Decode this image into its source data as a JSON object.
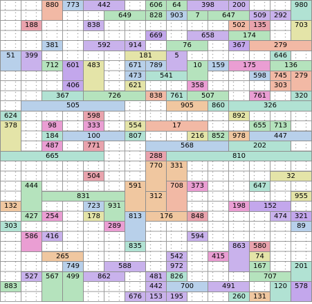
{
  "palette": {
    "pink": "#e9a3ad",
    "lav": "#c9b2ec",
    "green": "#b5e3bd",
    "salmon": "#f2b9a5",
    "yellow": "#e4e4a8",
    "blue": "#b8d0ea",
    "mint": "#b1e2d3",
    "violet": "#c3a7ec",
    "peach": "#f0c7a0",
    "magenta": "#ea9ed3"
  },
  "grid": {
    "cols": 15,
    "rows": 30
  },
  "blocks": [
    {
      "n": "880",
      "c": 2,
      "r": 0,
      "w": 1,
      "h": 2,
      "col": "salmon"
    },
    {
      "n": "773",
      "c": 3,
      "r": 0,
      "w": 1,
      "h": 1,
      "col": "blue"
    },
    {
      "n": "442",
      "c": 4,
      "r": 0,
      "w": 2,
      "h": 1,
      "col": "lav"
    },
    {
      "n": "606",
      "c": 7,
      "r": 0,
      "w": 1,
      "h": 1,
      "col": "green"
    },
    {
      "n": "64",
      "c": 8,
      "r": 0,
      "w": 1,
      "h": 1,
      "col": "green"
    },
    {
      "n": "398",
      "c": 9,
      "r": 0,
      "w": 2,
      "h": 1,
      "col": "lav"
    },
    {
      "n": "200",
      "c": 11,
      "r": 0,
      "w": 1,
      "h": 1,
      "col": "lav"
    },
    {
      "n": "980",
      "c": 14,
      "r": 0,
      "w": 1,
      "h": 2,
      "col": "mint"
    },
    {
      "n": "649",
      "c": 5,
      "r": 1,
      "w": 2,
      "h": 1,
      "col": "green"
    },
    {
      "n": "828",
      "c": 7,
      "r": 1,
      "w": 1,
      "h": 1,
      "col": "green"
    },
    {
      "n": "903",
      "c": 8,
      "r": 1,
      "w": 1,
      "h": 1,
      "col": "blue"
    },
    {
      "n": "7",
      "c": 9,
      "r": 1,
      "w": 1,
      "h": 1,
      "col": "green"
    },
    {
      "n": "647",
      "c": 10,
      "r": 1,
      "w": 2,
      "h": 1,
      "col": "green"
    },
    {
      "n": "509",
      "c": 12,
      "r": 1,
      "w": 1,
      "h": 1,
      "col": "lav"
    },
    {
      "n": "292",
      "c": 13,
      "r": 1,
      "w": 1,
      "h": 1,
      "col": "lav"
    },
    {
      "n": "188",
      "c": 1,
      "r": 2,
      "w": 1,
      "h": 1,
      "col": "pink"
    },
    {
      "n": "838",
      "c": 4,
      "r": 2,
      "w": 1,
      "h": 1,
      "col": "lav"
    },
    {
      "n": "502",
      "c": 11,
      "r": 2,
      "w": 1,
      "h": 1,
      "col": "salmon"
    },
    {
      "n": "135",
      "c": 12,
      "r": 2,
      "w": 1,
      "h": 1,
      "col": "pink"
    },
    {
      "n": "703",
      "c": 14,
      "r": 2,
      "w": 1,
      "h": 2,
      "col": "yellow"
    },
    {
      "n": "669",
      "c": 7,
      "r": 3,
      "w": 1,
      "h": 1,
      "col": "violet"
    },
    {
      "n": "658",
      "c": 9,
      "r": 3,
      "w": 2,
      "h": 1,
      "col": "lav"
    },
    {
      "n": "174",
      "c": 11,
      "r": 3,
      "w": 2,
      "h": 1,
      "col": "green"
    },
    {
      "n": "381",
      "c": 2,
      "r": 4,
      "w": 1,
      "h": 1,
      "col": "blue"
    },
    {
      "n": "592",
      "c": 4,
      "r": 4,
      "w": 2,
      "h": 1,
      "col": "lav"
    },
    {
      "n": "914",
      "c": 6,
      "r": 4,
      "w": 1,
      "h": 1,
      "col": "lav"
    },
    {
      "n": "76",
      "c": 8,
      "r": 4,
      "w": 2,
      "h": 1,
      "col": "green"
    },
    {
      "n": "367",
      "c": 11,
      "r": 4,
      "w": 1,
      "h": 1,
      "col": "violet"
    },
    {
      "n": "279",
      "c": 12,
      "r": 4,
      "w": 3,
      "h": 1,
      "col": "salmon"
    },
    {
      "n": "51",
      "c": 0,
      "r": 5,
      "w": 1,
      "h": 2,
      "col": "blue"
    },
    {
      "n": "399",
      "c": 1,
      "r": 5,
      "w": 1,
      "h": 2,
      "col": "lav"
    },
    {
      "n": "181",
      "c": 6,
      "r": 5,
      "w": 2,
      "h": 1,
      "col": "yellow"
    },
    {
      "n": "5",
      "c": 8,
      "r": 5,
      "w": 1,
      "h": 2,
      "col": "lav"
    },
    {
      "n": "646",
      "c": 13,
      "r": 5,
      "w": 1,
      "h": 1,
      "col": "mint"
    },
    {
      "n": "712",
      "c": 2,
      "r": 6,
      "w": 1,
      "h": 1,
      "col": "green"
    },
    {
      "n": "601",
      "c": 3,
      "r": 6,
      "w": 1,
      "h": 2,
      "col": "violet"
    },
    {
      "n": "483",
      "c": 4,
      "r": 6,
      "w": 1,
      "h": 3,
      "col": "yellow"
    },
    {
      "n": "671",
      "c": 6,
      "r": 6,
      "w": 1,
      "h": 1,
      "col": "blue"
    },
    {
      "n": "789",
      "c": 7,
      "r": 6,
      "w": 1,
      "h": 1,
      "col": "blue"
    },
    {
      "n": "10",
      "c": 9,
      "r": 6,
      "w": 1,
      "h": 2,
      "col": "green"
    },
    {
      "n": "159",
      "c": 10,
      "r": 6,
      "w": 1,
      "h": 1,
      "col": "blue"
    },
    {
      "n": "175",
      "c": 11,
      "r": 6,
      "w": 2,
      "h": 1,
      "col": "magenta"
    },
    {
      "n": "136",
      "c": 13,
      "r": 6,
      "w": 2,
      "h": 1,
      "col": "green"
    },
    {
      "n": "473",
      "c": 6,
      "r": 7,
      "w": 1,
      "h": 1,
      "col": "blue"
    },
    {
      "n": "541",
      "c": 7,
      "r": 7,
      "w": 2,
      "h": 1,
      "col": "mint"
    },
    {
      "n": "598",
      "c": 12,
      "r": 7,
      "w": 1,
      "h": 1,
      "col": "blue"
    },
    {
      "n": "745",
      "c": 13,
      "r": 7,
      "w": 1,
      "h": 1,
      "col": "salmon"
    },
    {
      "n": "279",
      "c": 14,
      "r": 7,
      "w": 1,
      "h": 2,
      "col": "salmon"
    },
    {
      "n": "406",
      "c": 3,
      "r": 8,
      "w": 1,
      "h": 1,
      "col": "violet"
    },
    {
      "n": "621",
      "c": 6,
      "r": 8,
      "w": 1,
      "h": 1,
      "col": "yellow"
    },
    {
      "n": "358",
      "c": 9,
      "r": 8,
      "w": 1,
      "h": 1,
      "col": "magenta"
    },
    {
      "n": "303",
      "c": 13,
      "r": 8,
      "w": 1,
      "h": 1,
      "col": "salmon"
    },
    {
      "n": "367",
      "c": 2,
      "r": 9,
      "w": 2,
      "h": 1,
      "col": "mint"
    },
    {
      "n": "726",
      "c": 4,
      "r": 9,
      "w": 3,
      "h": 1,
      "col": "green"
    },
    {
      "n": "838",
      "c": 7,
      "r": 9,
      "w": 1,
      "h": 1,
      "col": "salmon"
    },
    {
      "n": "761",
      "c": 8,
      "r": 9,
      "w": 1,
      "h": 1,
      "col": "mint"
    },
    {
      "n": "507",
      "c": 9,
      "r": 9,
      "w": 2,
      "h": 1,
      "col": "green"
    },
    {
      "n": "761",
      "c": 12,
      "r": 9,
      "w": 1,
      "h": 1,
      "col": "magenta"
    },
    {
      "n": "320",
      "c": 14,
      "r": 9,
      "w": 1,
      "h": 1,
      "col": "mint"
    },
    {
      "n": "505",
      "c": 1,
      "r": 10,
      "w": 5,
      "h": 1,
      "col": "blue"
    },
    {
      "n": "905",
      "c": 8,
      "r": 10,
      "w": 2,
      "h": 1,
      "col": "peach"
    },
    {
      "n": "860",
      "c": 10,
      "r": 10,
      "w": 1,
      "h": 1,
      "col": "mint"
    },
    {
      "n": "326",
      "c": 11,
      "r": 10,
      "w": 4,
      "h": 1,
      "col": "mint"
    },
    {
      "n": "624",
      "c": 0,
      "r": 11,
      "w": 1,
      "h": 1,
      "col": "mint"
    },
    {
      "n": "598",
      "c": 4,
      "r": 11,
      "w": 1,
      "h": 1,
      "col": "pink"
    },
    {
      "n": "892",
      "c": 11,
      "r": 11,
      "w": 1,
      "h": 1,
      "col": "yellow"
    },
    {
      "n": "378",
      "c": 0,
      "r": 12,
      "w": 1,
      "h": 3,
      "col": "yellow"
    },
    {
      "n": "98",
      "c": 2,
      "r": 12,
      "w": 1,
      "h": 1,
      "col": "magenta"
    },
    {
      "n": "333",
      "c": 4,
      "r": 12,
      "w": 1,
      "h": 1,
      "col": "magenta"
    },
    {
      "n": "554",
      "c": 6,
      "r": 12,
      "w": 1,
      "h": 1,
      "col": "yellow"
    },
    {
      "n": "17",
      "c": 7,
      "r": 12,
      "w": 3,
      "h": 1,
      "col": "salmon"
    },
    {
      "n": "655",
      "c": 12,
      "r": 12,
      "w": 1,
      "h": 1,
      "col": "green"
    },
    {
      "n": "713",
      "c": 13,
      "r": 12,
      "w": 1,
      "h": 1,
      "col": "green"
    },
    {
      "n": "184",
      "c": 2,
      "r": 13,
      "w": 1,
      "h": 1,
      "col": "mint"
    },
    {
      "n": "100",
      "c": 3,
      "r": 13,
      "w": 3,
      "h": 1,
      "col": "blue"
    },
    {
      "n": "807",
      "c": 6,
      "r": 13,
      "w": 1,
      "h": 1,
      "col": "mint"
    },
    {
      "n": "216",
      "c": 9,
      "r": 13,
      "w": 1,
      "h": 1,
      "col": "yellow"
    },
    {
      "n": "852",
      "c": 10,
      "r": 13,
      "w": 1,
      "h": 1,
      "col": "green"
    },
    {
      "n": "978",
      "c": 11,
      "r": 13,
      "w": 1,
      "h": 1,
      "col": "peach"
    },
    {
      "n": "447",
      "c": 12,
      "r": 13,
      "w": 3,
      "h": 1,
      "col": "blue"
    },
    {
      "n": "487",
      "c": 2,
      "r": 14,
      "w": 1,
      "h": 1,
      "col": "magenta"
    },
    {
      "n": "771",
      "c": 4,
      "r": 14,
      "w": 1,
      "h": 1,
      "col": "pink"
    },
    {
      "n": "568",
      "c": 7,
      "r": 14,
      "w": 4,
      "h": 1,
      "col": "blue"
    },
    {
      "n": "202",
      "c": 11,
      "r": 14,
      "w": 3,
      "h": 1,
      "col": "mint"
    },
    {
      "n": "665",
      "c": 0,
      "r": 15,
      "w": 5,
      "h": 1,
      "col": "mint"
    },
    {
      "n": "288",
      "c": 7,
      "r": 15,
      "w": 1,
      "h": 1,
      "col": "pink"
    },
    {
      "n": "810",
      "c": 8,
      "r": 15,
      "w": 7,
      "h": 1,
      "col": "mint"
    },
    {
      "n": "770",
      "c": 7,
      "r": 16,
      "w": 1,
      "h": 3,
      "col": "peach"
    },
    {
      "n": "331",
      "c": 8,
      "r": 16,
      "w": 1,
      "h": 2,
      "col": "peach"
    },
    {
      "n": "504",
      "c": 4,
      "r": 17,
      "w": 1,
      "h": 1,
      "col": "pink"
    },
    {
      "n": "32",
      "c": 13,
      "r": 17,
      "w": 2,
      "h": 1,
      "col": "yellow"
    },
    {
      "n": "444",
      "c": 1,
      "r": 18,
      "w": 1,
      "h": 4,
      "col": "green"
    },
    {
      "n": "591",
      "c": 6,
      "r": 18,
      "w": 1,
      "h": 3,
      "col": "peach"
    },
    {
      "n": "708",
      "c": 8,
      "r": 18,
      "w": 1,
      "h": 3,
      "col": "salmon"
    },
    {
      "n": "373",
      "c": 9,
      "r": 18,
      "w": 1,
      "h": 1,
      "col": "magenta"
    },
    {
      "n": "647",
      "c": 12,
      "r": 18,
      "w": 1,
      "h": 1,
      "col": "mint"
    },
    {
      "n": "831",
      "c": 2,
      "r": 19,
      "w": 4,
      "h": 1,
      "col": "green"
    },
    {
      "n": "312",
      "c": 7,
      "r": 19,
      "w": 1,
      "h": 2,
      "col": "peach"
    },
    {
      "n": "955",
      "c": 14,
      "r": 19,
      "w": 1,
      "h": 1,
      "col": "yellow"
    },
    {
      "n": "132",
      "c": 0,
      "r": 20,
      "w": 1,
      "h": 1,
      "col": "peach"
    },
    {
      "n": "723",
      "c": 4,
      "r": 20,
      "w": 1,
      "h": 1,
      "col": "blue"
    },
    {
      "n": "931",
      "c": 5,
      "r": 20,
      "w": 1,
      "h": 2,
      "col": "green"
    },
    {
      "n": "198",
      "c": 11,
      "r": 20,
      "w": 1,
      "h": 1,
      "col": "magenta"
    },
    {
      "n": "152",
      "c": 12,
      "r": 20,
      "w": 2,
      "h": 1,
      "col": "violet"
    },
    {
      "n": "427",
      "c": 1,
      "r": 21,
      "w": 1,
      "h": 1,
      "col": "green"
    },
    {
      "n": "254",
      "c": 2,
      "r": 21,
      "w": 1,
      "h": 1,
      "col": "magenta"
    },
    {
      "n": "178",
      "c": 4,
      "r": 21,
      "w": 1,
      "h": 1,
      "col": "yellow"
    },
    {
      "n": "813",
      "c": 6,
      "r": 21,
      "w": 1,
      "h": 3,
      "col": "blue"
    },
    {
      "n": "176",
      "c": 7,
      "r": 21,
      "w": 2,
      "h": 1,
      "col": "peach"
    },
    {
      "n": "848",
      "c": 9,
      "r": 21,
      "w": 1,
      "h": 1,
      "col": "pink"
    },
    {
      "n": "474",
      "c": 13,
      "r": 21,
      "w": 1,
      "h": 1,
      "col": "lav"
    },
    {
      "n": "321",
      "c": 14,
      "r": 21,
      "w": 1,
      "h": 1,
      "col": "violet"
    },
    {
      "n": "303",
      "c": 0,
      "r": 22,
      "w": 1,
      "h": 1,
      "col": "mint"
    },
    {
      "n": "289",
      "c": 5,
      "r": 22,
      "w": 1,
      "h": 1,
      "col": "magenta"
    },
    {
      "n": "89",
      "c": 14,
      "r": 22,
      "w": 1,
      "h": 1,
      "col": "blue"
    },
    {
      "n": "586",
      "c": 1,
      "r": 23,
      "w": 1,
      "h": 2,
      "col": "magenta"
    },
    {
      "n": "416",
      "c": 2,
      "r": 23,
      "w": 1,
      "h": 1,
      "col": "lav"
    },
    {
      "n": "594",
      "c": 9,
      "r": 23,
      "w": 1,
      "h": 1,
      "col": "lav"
    },
    {
      "n": "835",
      "c": 6,
      "r": 24,
      "w": 1,
      "h": 1,
      "col": "mint"
    },
    {
      "n": "863",
      "c": 11,
      "r": 24,
      "w": 1,
      "h": 3,
      "col": "lav"
    },
    {
      "n": "580",
      "c": 12,
      "r": 24,
      "w": 1,
      "h": 1,
      "col": "pink"
    },
    {
      "n": "265",
      "c": 2,
      "r": 25,
      "w": 2,
      "h": 1,
      "col": "peach"
    },
    {
      "n": "542",
      "c": 8,
      "r": 25,
      "w": 1,
      "h": 1,
      "col": "lav"
    },
    {
      "n": "415",
      "c": 10,
      "r": 25,
      "w": 1,
      "h": 1,
      "col": "magenta"
    },
    {
      "n": "74",
      "c": 12,
      "r": 25,
      "w": 1,
      "h": 1,
      "col": "yellow"
    },
    {
      "n": "749",
      "c": 3,
      "r": 26,
      "w": 1,
      "h": 1,
      "col": "blue"
    },
    {
      "n": "588",
      "c": 5,
      "r": 26,
      "w": 2,
      "h": 1,
      "col": "lav"
    },
    {
      "n": "972",
      "c": 8,
      "r": 26,
      "w": 1,
      "h": 1,
      "col": "lav"
    },
    {
      "n": "167",
      "c": 12,
      "r": 26,
      "w": 1,
      "h": 1,
      "col": "green"
    },
    {
      "n": "201",
      "c": 14,
      "r": 26,
      "w": 1,
      "h": 2,
      "col": "mint"
    },
    {
      "n": "527",
      "c": 1,
      "r": 27,
      "w": 1,
      "h": 1,
      "col": "lav"
    },
    {
      "n": "567",
      "c": 2,
      "r": 27,
      "w": 1,
      "h": 3,
      "col": "green"
    },
    {
      "n": "499",
      "c": 3,
      "r": 27,
      "w": 1,
      "h": 3,
      "col": "green"
    },
    {
      "n": "862",
      "c": 4,
      "r": 27,
      "w": 2,
      "h": 1,
      "col": "lav"
    },
    {
      "n": "481",
      "c": 7,
      "r": 27,
      "w": 1,
      "h": 1,
      "col": "lav"
    },
    {
      "n": "826",
      "c": 8,
      "r": 27,
      "w": 1,
      "h": 1,
      "col": "mint"
    },
    {
      "n": "707",
      "c": 12,
      "r": 27,
      "w": 2,
      "h": 1,
      "col": "green"
    },
    {
      "n": "883",
      "c": 0,
      "r": 28,
      "w": 1,
      "h": 1,
      "col": "green"
    },
    {
      "n": "442",
      "c": 7,
      "r": 28,
      "w": 1,
      "h": 1,
      "col": "lav"
    },
    {
      "n": "700",
      "c": 8,
      "r": 28,
      "w": 2,
      "h": 1,
      "col": "blue"
    },
    {
      "n": "491",
      "c": 10,
      "r": 28,
      "w": 2,
      "h": 1,
      "col": "lav"
    },
    {
      "n": "120",
      "c": 13,
      "r": 28,
      "w": 1,
      "h": 2,
      "col": "mint"
    },
    {
      "n": "578",
      "c": 14,
      "r": 28,
      "w": 1,
      "h": 2,
      "col": "violet"
    },
    {
      "n": "676",
      "c": 6,
      "r": 29,
      "w": 1,
      "h": 1,
      "col": "lav"
    },
    {
      "n": "153",
      "c": 7,
      "r": 29,
      "w": 1,
      "h": 1,
      "col": "lav"
    },
    {
      "n": "195",
      "c": 8,
      "r": 29,
      "w": 1,
      "h": 1,
      "col": "lav"
    },
    {
      "n": "260",
      "c": 11,
      "r": 29,
      "w": 1,
      "h": 1,
      "col": "mint"
    },
    {
      "n": "131",
      "c": 12,
      "r": 29,
      "w": 1,
      "h": 1,
      "col": "peach"
    }
  ]
}
